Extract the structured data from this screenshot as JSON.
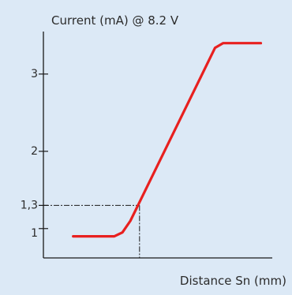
{
  "chart_data": {
    "type": "line",
    "title": "Current (mA) @ 8.2 V",
    "xlabel": "Distance Sn (mm)",
    "ylabel": "",
    "y_ticks": [
      {
        "value": 1,
        "label": "1"
      },
      {
        "value": 1.3,
        "label": "1,3"
      },
      {
        "value": 2,
        "label": "2"
      },
      {
        "value": 3,
        "label": "3"
      }
    ],
    "ylim": [
      0.62,
      3.55
    ],
    "xlim": [
      0,
      10
    ],
    "grid": false,
    "series": [
      {
        "color": "#e8201f",
        "x": [
          1.3,
          3.1,
          3.45,
          3.8,
          7.5,
          7.85,
          9.5
        ],
        "y": [
          0.9,
          0.9,
          0.95,
          1.1,
          3.34,
          3.4,
          3.4
        ]
      }
    ],
    "reference_point": {
      "x": 4.2,
      "y": 1.3
    },
    "reference_line_color": "#1a1a1a"
  }
}
